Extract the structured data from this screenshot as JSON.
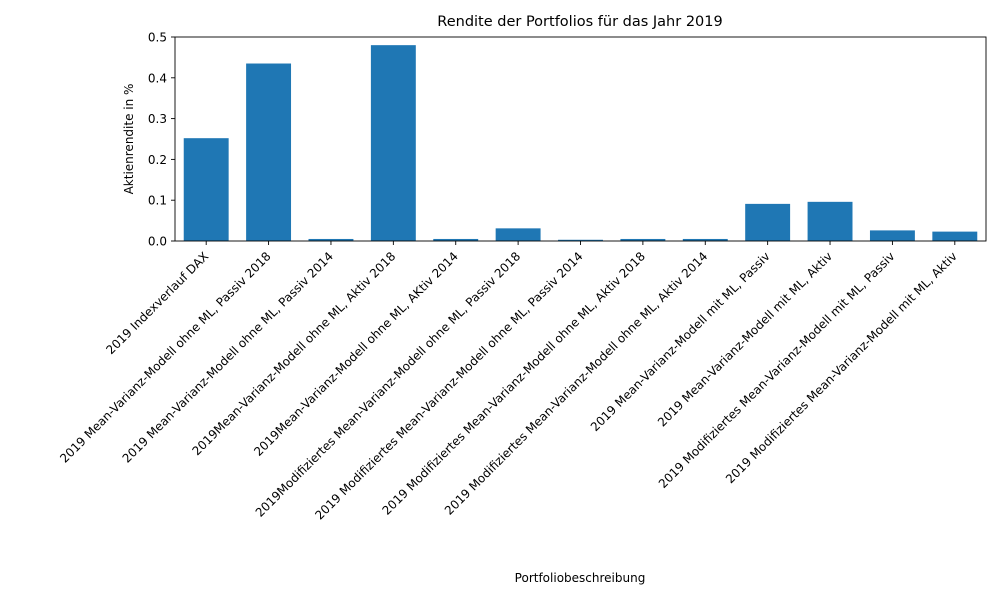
{
  "chart_data": {
    "type": "bar",
    "title": "Rendite der Portfolios für das Jahr 2019",
    "xlabel": "Portfoliobeschreibung",
    "ylabel": "Aktienrendite in %",
    "categories": [
      "2019 Indexverlauf DAX",
      "2019 Mean-Varianz-Modell ohne ML, Passiv 2018",
      "2019 Mean-Varianz-Modell ohne ML, Passiv 2014",
      "2019Mean-Varianz-Modell ohne ML, Aktiv 2018",
      "2019Mean-Varianz-Modell ohne ML, AKtiv 2014",
      "2019Modifiziertes Mean-Varianz-Modell ohne ML, Passiv 2018",
      "2019 Modifiziertes Mean-Varianz-Modell ohne ML, Passiv 2014",
      "2019 Modifiziertes Mean-Varianz-Modell ohne ML, Aktiv 2018",
      "2019 Modifiziertes Mean-Varianz-Modell ohne ML, Aktiv 2014",
      "2019 Mean-Varianz-Modell mit ML, Passiv",
      "2019 Mean-Varianz-Modell mit ML, Aktiv",
      "2019 Modifiziertes Mean-Varianz-Modell mit ML, Passiv",
      "2019 Modifiziertes Mean-Varianz-Modell mit ML, Aktiv"
    ],
    "values": [
      0.252,
      0.435,
      0.005,
      0.48,
      0.005,
      0.031,
      0.003,
      0.005,
      0.005,
      0.091,
      0.096,
      0.026,
      0.023
    ],
    "ylim": [
      0,
      0.5
    ],
    "yticks": [
      "0.0",
      "0.1",
      "0.2",
      "0.3",
      "0.4",
      "0.5"
    ],
    "bar_color": "#1f77b4",
    "grid": false,
    "legend": "none"
  }
}
